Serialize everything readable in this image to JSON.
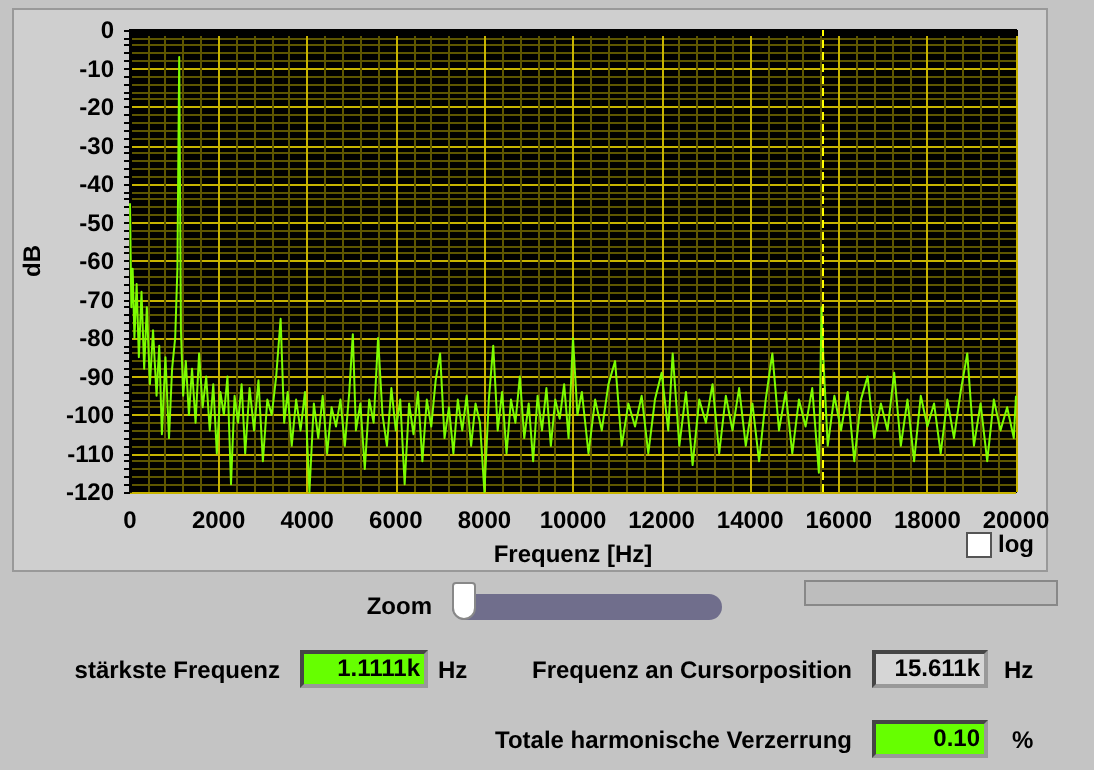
{
  "chart_data": {
    "type": "line",
    "xlabel": "Frequenz [Hz]",
    "ylabel": "dB",
    "xlim": [
      0,
      20000
    ],
    "xticks": [
      0,
      {
        "value": 400,
        "label": null
      },
      {
        "value": 800,
        "label": null
      },
      {
        "value": 1200,
        "label": null
      },
      {
        "value": 1600,
        "label": null
      },
      2000,
      {
        "value": 2400,
        "label": null
      },
      {
        "value": 2800,
        "label": null
      },
      {
        "value": 3200,
        "label": null
      },
      {
        "value": 3600,
        "label": null
      },
      4000,
      {
        "value": 4400,
        "label": null
      },
      {
        "value": 4800,
        "label": null
      },
      {
        "value": 5200,
        "label": null
      },
      {
        "value": 5600,
        "label": null
      },
      6000,
      {
        "value": 6400,
        "label": null
      },
      {
        "value": 6800,
        "label": null
      },
      {
        "value": 7200,
        "label": null
      },
      {
        "value": 7600,
        "label": null
      },
      8000,
      {
        "value": 8400,
        "label": null
      },
      {
        "value": 8800,
        "label": null
      },
      {
        "value": 9200,
        "label": null
      },
      {
        "value": 9600,
        "label": null
      },
      10000,
      {
        "value": 10400,
        "label": null
      },
      {
        "value": 10800,
        "label": null
      },
      {
        "value": 11200,
        "label": null
      },
      {
        "value": 11600,
        "label": null
      },
      12000,
      {
        "value": 12400,
        "label": null
      },
      {
        "value": 12800,
        "label": null
      },
      {
        "value": 13200,
        "label": null
      },
      {
        "value": 13600,
        "label": null
      },
      14000,
      {
        "value": 14400,
        "label": null
      },
      {
        "value": 14800,
        "label": null
      },
      {
        "value": 15200,
        "label": null
      },
      {
        "value": 15600,
        "label": null
      },
      16000,
      {
        "value": 16400,
        "label": null
      },
      {
        "value": 16800,
        "label": null
      },
      {
        "value": 17200,
        "label": null
      },
      {
        "value": 17600,
        "label": null
      },
      18000,
      {
        "value": 18400,
        "label": null
      },
      {
        "value": 18800,
        "label": null
      },
      {
        "value": 19200,
        "label": null
      },
      {
        "value": 19600,
        "label": null
      },
      20000
    ],
    "ylim": [
      -120,
      0
    ],
    "yticks": [
      -120,
      {
        "value": -118,
        "label": null
      },
      {
        "value": -116,
        "label": null
      },
      {
        "value": -114,
        "label": null
      },
      {
        "value": -112,
        "label": null
      },
      -110,
      {
        "value": -108,
        "label": null
      },
      {
        "value": -106,
        "label": null
      },
      {
        "value": -104,
        "label": null
      },
      {
        "value": -102,
        "label": null
      },
      -100,
      {
        "value": -98,
        "label": null
      },
      {
        "value": -96,
        "label": null
      },
      {
        "value": -94,
        "label": null
      },
      {
        "value": -92,
        "label": null
      },
      -90,
      {
        "value": -88,
        "label": null
      },
      {
        "value": -86,
        "label": null
      },
      {
        "value": -84,
        "label": null
      },
      {
        "value": -82,
        "label": null
      },
      -80,
      {
        "value": -78,
        "label": null
      },
      {
        "value": -76,
        "label": null
      },
      {
        "value": -74,
        "label": null
      },
      {
        "value": -72,
        "label": null
      },
      -70,
      {
        "value": -68,
        "label": null
      },
      {
        "value": -66,
        "label": null
      },
      {
        "value": -64,
        "label": null
      },
      {
        "value": -62,
        "label": null
      },
      -60,
      {
        "value": -58,
        "label": null
      },
      {
        "value": -56,
        "label": null
      },
      {
        "value": -54,
        "label": null
      },
      {
        "value": -52,
        "label": null
      },
      -50,
      {
        "value": -48,
        "label": null
      },
      {
        "value": -46,
        "label": null
      },
      {
        "value": -44,
        "label": null
      },
      {
        "value": -42,
        "label": null
      },
      -40,
      {
        "value": -38,
        "label": null
      },
      {
        "value": -36,
        "label": null
      },
      {
        "value": -34,
        "label": null
      },
      {
        "value": -32,
        "label": null
      },
      -30,
      {
        "value": -28,
        "label": null
      },
      {
        "value": -26,
        "label": null
      },
      {
        "value": -24,
        "label": null
      },
      {
        "value": -22,
        "label": null
      },
      -20,
      {
        "value": -18,
        "label": null
      },
      {
        "value": -16,
        "label": null
      },
      {
        "value": -14,
        "label": null
      },
      {
        "value": -12,
        "label": null
      },
      -10,
      {
        "value": -8,
        "label": null
      },
      {
        "value": -6,
        "label": null
      },
      {
        "value": -4,
        "label": null
      },
      {
        "value": -2,
        "label": null
      },
      0
    ],
    "grid": true,
    "marker": "none",
    "line_style": "solid",
    "series": [
      {
        "color": "#7cfc00",
        "x": [
          0,
          30,
          60,
          100,
          150,
          200,
          260,
          320,
          380,
          450,
          520,
          600,
          660,
          720,
          800,
          880,
          950,
          1020,
          1070,
          1111,
          1150,
          1200,
          1260,
          1330,
          1400,
          1480,
          1560,
          1640,
          1720,
          1800,
          1880,
          1960,
          2040,
          2120,
          2200,
          2280,
          2360,
          2440,
          2520,
          2600,
          2700,
          2800,
          2900,
          3000,
          3100,
          3200,
          3300,
          3400,
          3480,
          3560,
          3650,
          3750,
          3850,
          3950,
          4050,
          4150,
          4250,
          4350,
          4450,
          4550,
          4650,
          4750,
          4850,
          4950,
          5030,
          5100,
          5200,
          5300,
          5400,
          5500,
          5600,
          5700,
          5800,
          5900,
          6000,
          6100,
          6200,
          6300,
          6400,
          6500,
          6600,
          6700,
          6800,
          6900,
          7000,
          7100,
          7200,
          7300,
          7400,
          7500,
          7600,
          7700,
          7800,
          7900,
          8000,
          8100,
          8200,
          8300,
          8400,
          8500,
          8600,
          8700,
          8800,
          8900,
          9000,
          9100,
          9200,
          9300,
          9400,
          9500,
          9600,
          9700,
          9800,
          9900,
          10000,
          10100,
          10200,
          10350,
          10500,
          10650,
          10800,
          10950,
          11100,
          11250,
          11400,
          11550,
          11700,
          11850,
          12000,
          12150,
          12250,
          12400,
          12550,
          12700,
          12850,
          13000,
          13150,
          13300,
          13450,
          13600,
          13750,
          13900,
          14050,
          14200,
          14350,
          14500,
          14650,
          14800,
          14950,
          15100,
          15250,
          15400,
          15550,
          15611,
          15650,
          15750,
          15900,
          16050,
          16200,
          16350,
          16500,
          16650,
          16800,
          16950,
          17100,
          17250,
          17400,
          17550,
          17700,
          17850,
          18000,
          18150,
          18300,
          18450,
          18600,
          18750,
          18900,
          19050,
          19200,
          19350,
          19500,
          19650,
          19800,
          19950,
          20000
        ],
        "values": [
          -45,
          -72,
          -62,
          -80,
          -66,
          -85,
          -68,
          -88,
          -72,
          -92,
          -78,
          -95,
          -82,
          -105,
          -85,
          -106,
          -88,
          -80,
          -62,
          -7,
          -78,
          -95,
          -86,
          -100,
          -88,
          -102,
          -84,
          -98,
          -90,
          -104,
          -92,
          -110,
          -94,
          -100,
          -90,
          -118,
          -95,
          -102,
          -92,
          -110,
          -93,
          -104,
          -91,
          -112,
          -96,
          -100,
          -90,
          -75,
          -102,
          -94,
          -108,
          -96,
          -104,
          -94,
          -120,
          -97,
          -106,
          -95,
          -110,
          -98,
          -103,
          -96,
          -108,
          -94,
          -79,
          -104,
          -97,
          -114,
          -96,
          -102,
          -80,
          -100,
          -108,
          -93,
          -104,
          -96,
          -118,
          -97,
          -105,
          -94,
          -112,
          -96,
          -103,
          -91,
          -84,
          -106,
          -98,
          -110,
          -96,
          -104,
          -95,
          -108,
          -97,
          -102,
          -120,
          -96,
          -82,
          -104,
          -94,
          -110,
          -96,
          -102,
          -90,
          -106,
          -97,
          -112,
          -95,
          -104,
          -93,
          -108,
          -96,
          -101,
          -92,
          -106,
          -80,
          -100,
          -94,
          -110,
          -96,
          -104,
          -92,
          -86,
          -108,
          -97,
          -103,
          -95,
          -110,
          -96,
          -89,
          -104,
          -84,
          -108,
          -94,
          -113,
          -96,
          -102,
          -92,
          -110,
          -95,
          -104,
          -93,
          -108,
          -97,
          -112,
          -96,
          -84,
          -104,
          -94,
          -110,
          -96,
          -103,
          -93,
          -115,
          -72,
          -85,
          -108,
          -95,
          -104,
          -94,
          -112,
          -96,
          -90,
          -106,
          -97,
          -104,
          -89,
          -108,
          -96,
          -112,
          -95,
          -103,
          -97,
          -110,
          -96,
          -106,
          -94,
          -84,
          -108,
          -97,
          -112,
          -96,
          -104,
          -98,
          -106,
          -95
        ]
      }
    ],
    "ref_lines": [
      {
        "axis": "x",
        "value": 15611,
        "color": "#ffff00",
        "line_style": "dashed"
      }
    ],
    "annotations": [
      "log",
      "Zoom",
      "stärkste Frequenz",
      "1.1111k",
      "Hz",
      "Frequenz an Cursorposition",
      "15.611k",
      "Hz",
      "Totale harmonische Verzerrung",
      "0.10",
      "%"
    ]
  }
}
